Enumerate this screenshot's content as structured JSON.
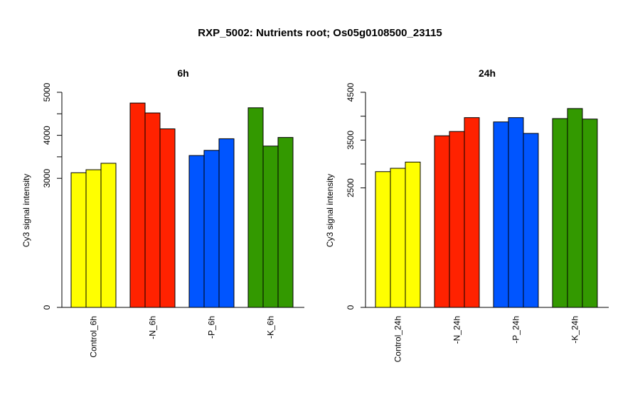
{
  "figure": {
    "title": "RXP_5002: Nutrients root; Os05g0108500_23115"
  },
  "chart_data": [
    {
      "type": "bar",
      "title": "6h",
      "ylabel": "Cy3 signal intensity",
      "ylim": [
        0,
        5000
      ],
      "yticks": [
        0,
        3000,
        4000,
        5000
      ],
      "grid": false,
      "categories": [
        "Control_6h",
        "-N_6h",
        "-P_6h",
        "-K_6h"
      ],
      "group_colors": [
        "#ffff00",
        "#ff2200",
        "#0055ff",
        "#339900"
      ],
      "series": [
        {
          "values": [
            3130,
            4750,
            3530,
            4640
          ]
        },
        {
          "values": [
            3200,
            4520,
            3650,
            3750
          ]
        },
        {
          "values": [
            3350,
            4150,
            3920,
            3950
          ]
        }
      ]
    },
    {
      "type": "bar",
      "title": "24h",
      "ylabel": "Cy3 signal intensity",
      "ylim": [
        0,
        4500
      ],
      "yticks": [
        0,
        2500,
        3500,
        4500
      ],
      "grid": false,
      "categories": [
        "Control_24h",
        "-N_24h",
        "-P_24h",
        "-K_24h"
      ],
      "group_colors": [
        "#ffff00",
        "#ff2200",
        "#0055ff",
        "#339900"
      ],
      "series": [
        {
          "values": [
            2840,
            3590,
            3880,
            3950
          ]
        },
        {
          "values": [
            2910,
            3680,
            3970,
            4160
          ]
        },
        {
          "values": [
            3040,
            3970,
            3640,
            3940
          ]
        }
      ]
    }
  ]
}
